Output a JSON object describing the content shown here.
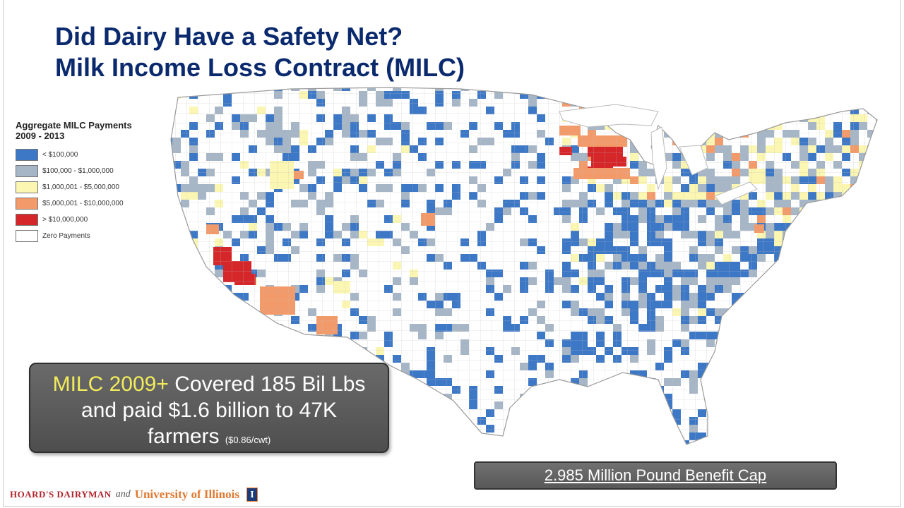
{
  "title": {
    "line1": "Did Dairy Have a Safety Net?",
    "line2": "Milk Income Loss Contract (MILC)"
  },
  "legend": {
    "title_line1": "Aggregate MILC Payments",
    "title_line2": "2009 - 2013",
    "items": [
      {
        "label": "< $100,000",
        "color": "#3d78c6"
      },
      {
        "label": "$100,000 - $1,000,000",
        "color": "#a6b6c6"
      },
      {
        "label": "$1,000,001 - $5,000,000",
        "color": "#fbf6b2"
      },
      {
        "label": "$5,000,001 - $10,000,000",
        "color": "#f39a6a"
      },
      {
        "label": "> $10,000,000",
        "color": "#d5262a"
      },
      {
        "label": "Zero Payments",
        "color": "#ffffff"
      }
    ]
  },
  "callout": {
    "highlight": "MILC 2009+",
    "text1": " Covered 185 Bil Lbs",
    "text2": "and paid $1.6 billion to 47K",
    "text3": "farmers ",
    "small": "($0.86/cwt)"
  },
  "cap_box": {
    "text": "2.985 Million Pound Benefit Cap"
  },
  "footer": {
    "brand1": "HOARD'S DAIRYMAN",
    "and": "and",
    "brand2": "University of Illinois",
    "logo_letter": "I"
  },
  "map": {
    "outline_color": "#b8b8b8",
    "land_color": "#ffffff"
  }
}
